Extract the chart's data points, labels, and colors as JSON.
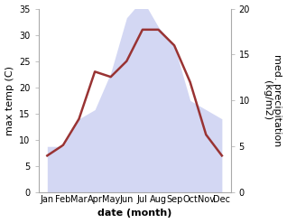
{
  "months": [
    "Jan",
    "Feb",
    "Mar",
    "Apr",
    "May",
    "Jun",
    "Jul",
    "Aug",
    "Sep",
    "Oct",
    "Nov",
    "Dec"
  ],
  "temperature": [
    7,
    9,
    14,
    23,
    22,
    25,
    31,
    31,
    28,
    21,
    11,
    7
  ],
  "precipitation": [
    5,
    5,
    8,
    9,
    13,
    19,
    21,
    18,
    16,
    10,
    9,
    8
  ],
  "temp_color": "#993333",
  "precip_color_fill": "#c5caf0",
  "ylabel_left": "max temp (C)",
  "ylabel_right": "med. precipitation\n(kg/m2)",
  "xlabel": "date (month)",
  "ylim_left": [
    0,
    35
  ],
  "ylim_right": [
    0,
    20
  ],
  "yticks_left": [
    0,
    5,
    10,
    15,
    20,
    25,
    30,
    35
  ],
  "yticks_right": [
    0,
    5,
    10,
    15,
    20
  ],
  "background_color": "#ffffff",
  "temp_linewidth": 1.8,
  "precip_alpha": 0.75,
  "tick_fontsize": 7,
  "label_fontsize": 8,
  "xlabel_fontsize": 8
}
